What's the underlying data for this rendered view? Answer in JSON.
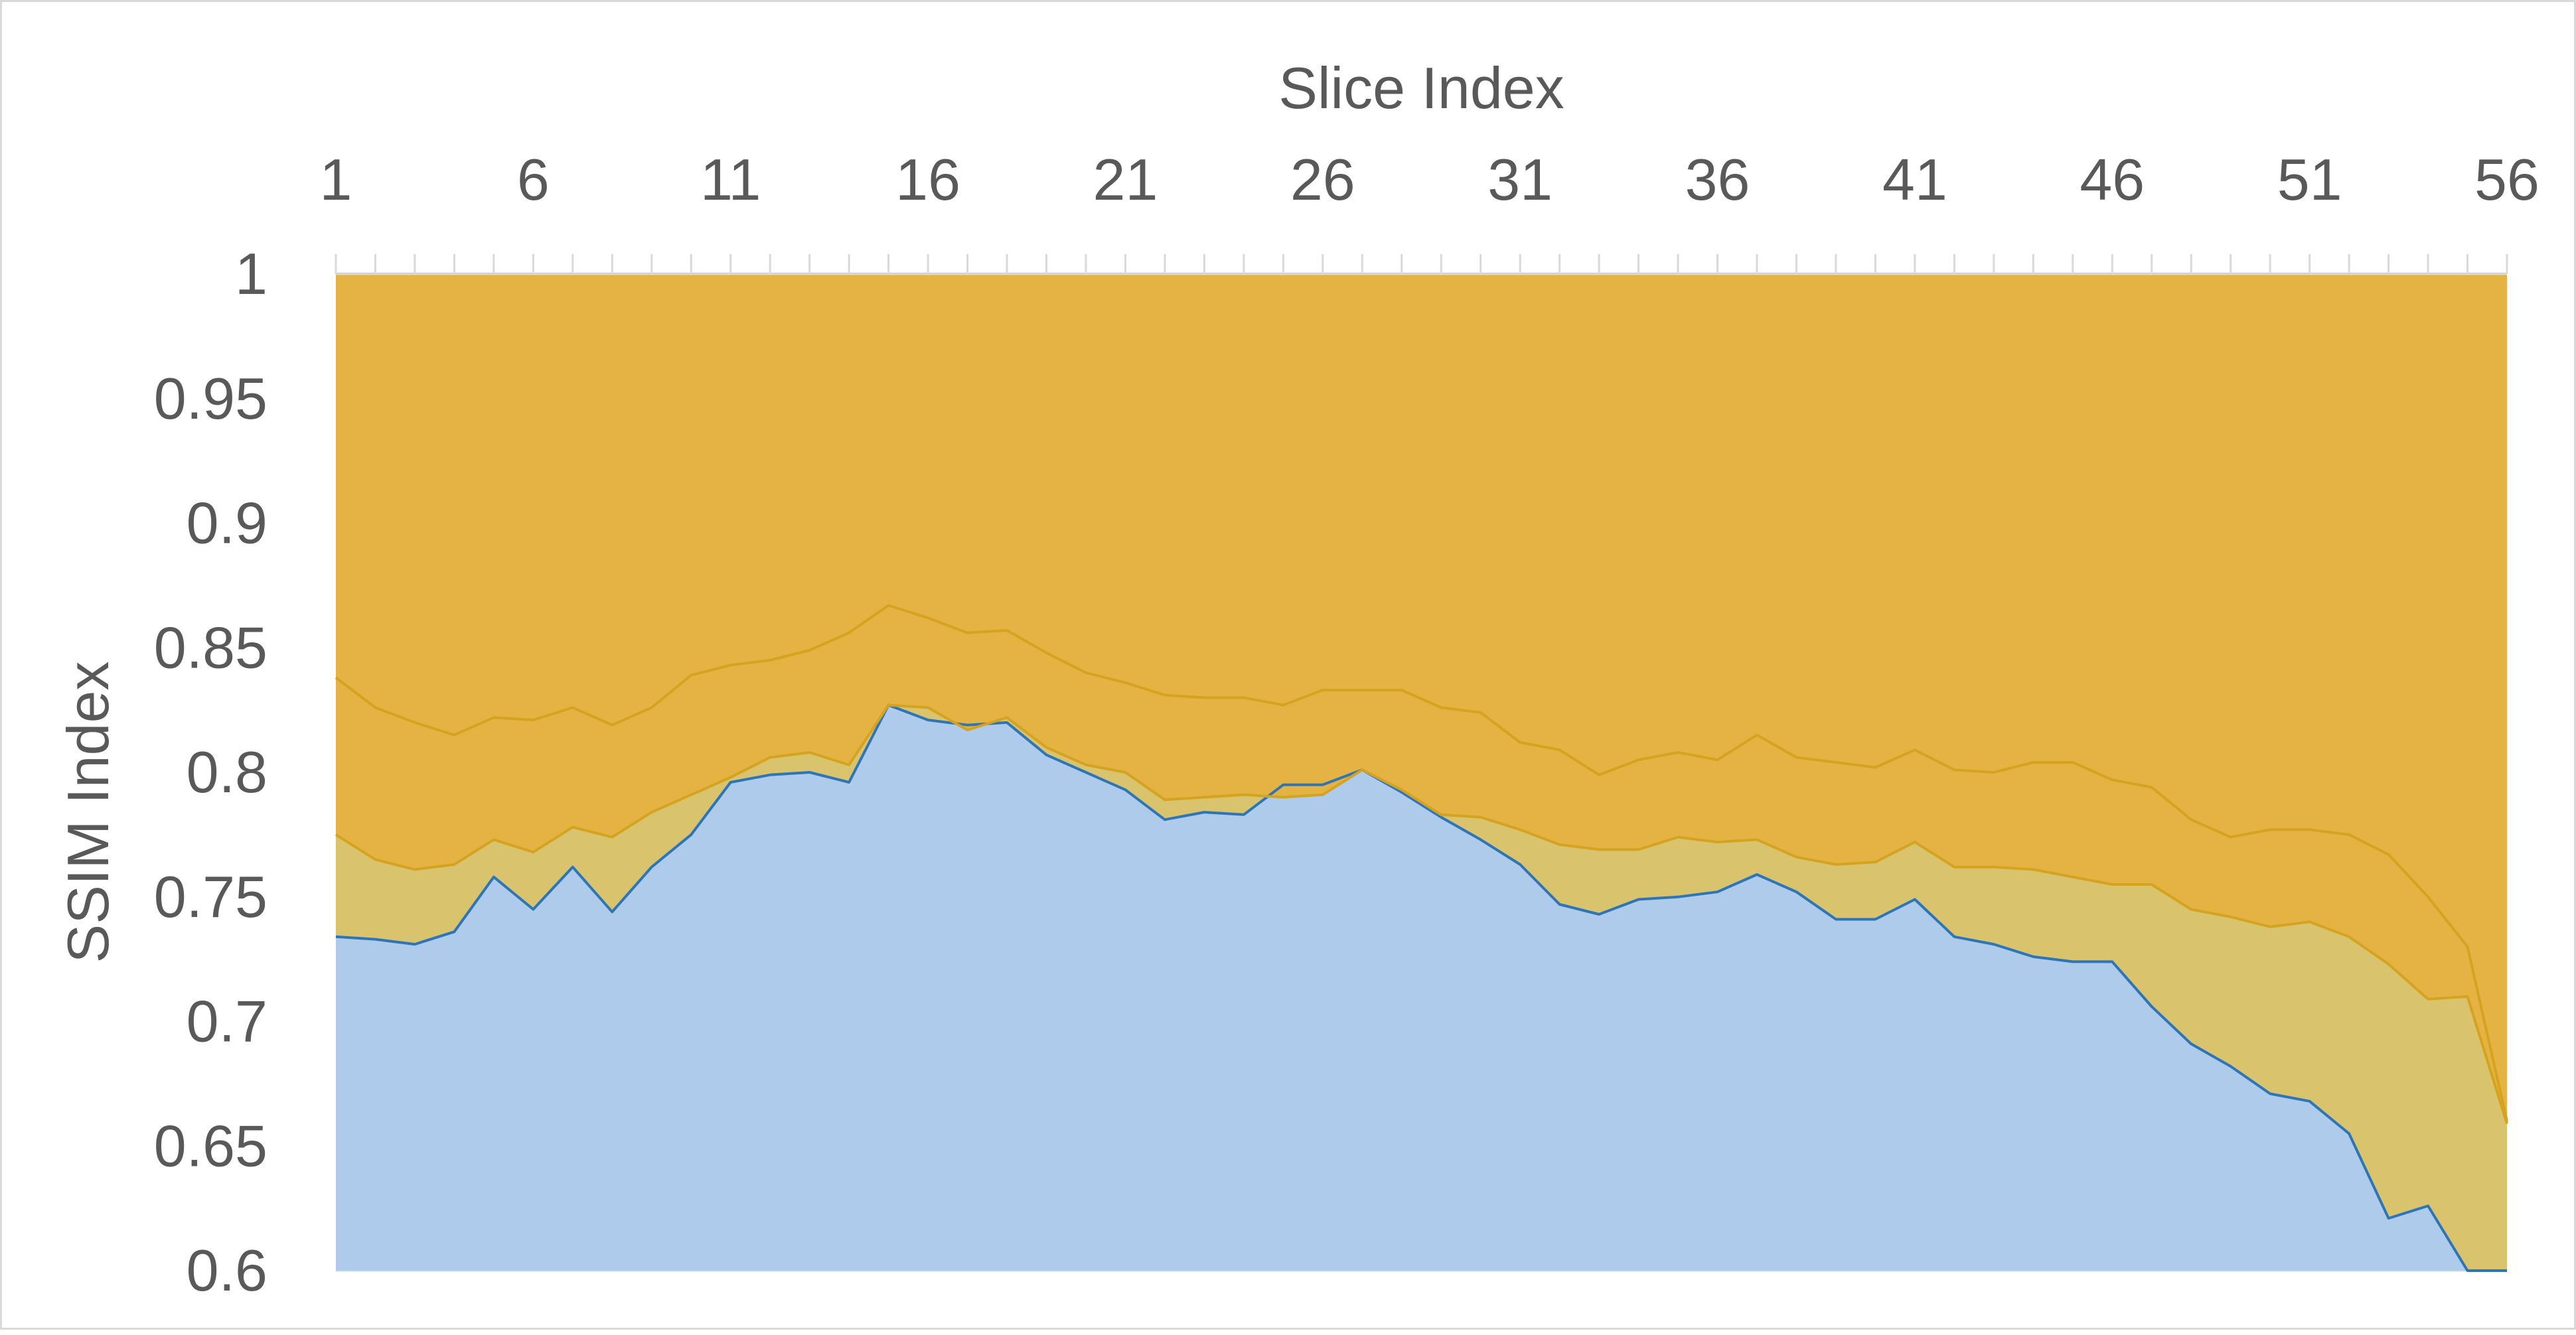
{
  "chart_data": {
    "type": "area",
    "title": "",
    "xlabel": "Slice Index",
    "ylabel": "SSIM Index",
    "x_ticks": [
      "1",
      "6",
      "11",
      "16",
      "21",
      "26",
      "31",
      "36",
      "41",
      "46",
      "51",
      "56"
    ],
    "y_ticks": [
      "1",
      "0.95",
      "0.9",
      "0.85",
      "0.8",
      "0.75",
      "0.7",
      "0.65",
      "0.6"
    ],
    "ylim": [
      0.6,
      1.0
    ],
    "xlim": [
      1,
      56
    ],
    "x_axis_position": "top",
    "y_axis_inverted": true,
    "grid": true,
    "legend": "none",
    "x": [
      1,
      2,
      3,
      4,
      5,
      6,
      7,
      8,
      9,
      10,
      11,
      12,
      13,
      14,
      15,
      16,
      17,
      18,
      19,
      20,
      21,
      22,
      23,
      24,
      25,
      26,
      27,
      28,
      29,
      30,
      31,
      32,
      33,
      34,
      35,
      36,
      37,
      38,
      39,
      40,
      41,
      42,
      43,
      44,
      45,
      46,
      47,
      48,
      49,
      50,
      51,
      52,
      53,
      54,
      55,
      56
    ],
    "series": [
      {
        "color": "#2e75b6",
        "fill": "#aecbeb",
        "values": [
          0.734,
          0.733,
          0.731,
          0.736,
          0.758,
          0.745,
          0.762,
          0.744,
          0.762,
          0.775,
          0.796,
          0.799,
          0.8,
          0.796,
          0.827,
          0.821,
          0.819,
          0.82,
          0.807,
          0.8,
          0.793,
          0.781,
          0.784,
          0.783,
          0.795,
          0.795,
          0.801,
          0.792,
          0.782,
          0.773,
          0.763,
          0.747,
          0.743,
          0.749,
          0.75,
          0.752,
          0.759,
          0.752,
          0.741,
          0.741,
          0.749,
          0.734,
          0.731,
          0.726,
          0.724,
          0.724,
          0.706,
          0.691,
          0.682,
          0.671,
          0.668,
          0.655,
          0.621,
          0.626,
          0.6,
          0.599
        ]
      },
      {
        "color": "#d6a31f",
        "fill": "#d9c36c",
        "values": [
          0.775,
          0.765,
          0.761,
          0.763,
          0.773,
          0.768,
          0.778,
          0.774,
          0.784,
          0.791,
          0.798,
          0.806,
          0.808,
          0.803,
          0.827,
          0.826,
          0.817,
          0.822,
          0.81,
          0.803,
          0.8,
          0.789,
          0.79,
          0.791,
          0.79,
          0.791,
          0.801,
          0.793,
          0.783,
          0.782,
          0.777,
          0.771,
          0.769,
          0.769,
          0.774,
          0.772,
          0.773,
          0.766,
          0.763,
          0.764,
          0.772,
          0.762,
          0.762,
          0.761,
          0.758,
          0.755,
          0.755,
          0.745,
          0.742,
          0.738,
          0.74,
          0.734,
          0.723,
          0.709,
          0.71,
          0.659
        ]
      },
      {
        "color": "#d6a31f",
        "fill": "#e5b343",
        "values": [
          0.838,
          0.826,
          0.82,
          0.815,
          0.822,
          0.821,
          0.826,
          0.819,
          0.826,
          0.839,
          0.843,
          0.845,
          0.849,
          0.856,
          0.867,
          0.862,
          0.856,
          0.857,
          0.848,
          0.84,
          0.836,
          0.831,
          0.83,
          0.83,
          0.827,
          0.833,
          0.833,
          0.833,
          0.826,
          0.824,
          0.812,
          0.809,
          0.799,
          0.805,
          0.808,
          0.805,
          0.815,
          0.806,
          0.804,
          0.802,
          0.809,
          0.801,
          0.8,
          0.804,
          0.804,
          0.797,
          0.794,
          0.781,
          0.774,
          0.777,
          0.777,
          0.775,
          0.767,
          0.75,
          0.73,
          0.66
        ]
      },
      {
        "color": "#e5b343",
        "fill": "#e5b343",
        "values": [
          1,
          1,
          1,
          1,
          1,
          1,
          1,
          1,
          1,
          1,
          1,
          1,
          1,
          1,
          1,
          1,
          1,
          1,
          1,
          1,
          1,
          1,
          1,
          1,
          1,
          1,
          1,
          1,
          1,
          1,
          1,
          1,
          1,
          1,
          1,
          1,
          1,
          1,
          1,
          1,
          1,
          1,
          1,
          1,
          1,
          1,
          1,
          1,
          1,
          1,
          1,
          1,
          1,
          1,
          1,
          1
        ]
      }
    ]
  }
}
